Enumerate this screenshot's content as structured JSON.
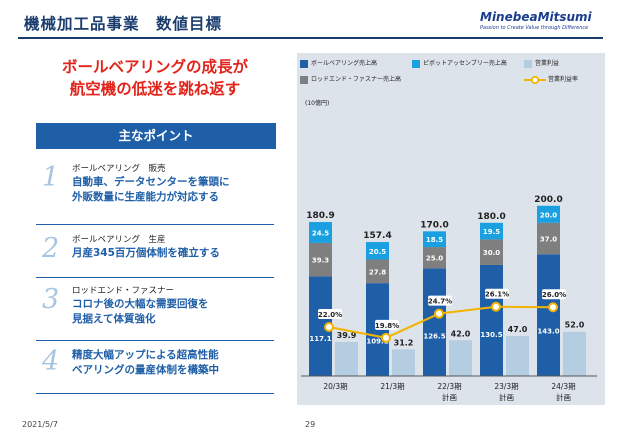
{
  "header": {
    "title": "機械加工品事業　数値目標",
    "logo_name": "MinebeaMitsumi",
    "logo_tagline": "Passion to Create Value through Difference"
  },
  "headline": {
    "line1": "ボールベアリングの成長が",
    "line2": "航空機の低迷を跳ね返す"
  },
  "points": {
    "heading": "主なポイント",
    "items": [
      {
        "num": "1",
        "category": "ボールベアリング　販売",
        "lines": [
          "自動車、データセンターを筆頭に",
          "外販数量に生産能力が対応する"
        ]
      },
      {
        "num": "2",
        "category": "ボールベアリング　生産",
        "lines": [
          "月産345百万個体制を確立する"
        ]
      },
      {
        "num": "3",
        "category": "ロッドエンド・ファスナー",
        "lines": [
          "コロナ後の大幅な需要回復を",
          "見据えて体質強化"
        ]
      },
      {
        "num": "4",
        "category": "",
        "lines": [
          "精度大幅アップによる超高性能",
          "ベアリングの量産体制を構築中"
        ]
      }
    ]
  },
  "footer": {
    "date": "2021/5/7",
    "page": "29"
  },
  "colors": {
    "brand_navy": "#1a3d6e",
    "accent_red": "#e2231a",
    "ball_bearing": "#1f5fa8",
    "pivot": "#1aa0e0",
    "rod_end": "#7f7f7f",
    "op_income": "#b4cde0",
    "margin_line": "#f2b400"
  },
  "chart_data": {
    "type": "bar",
    "unit": "(10億円)",
    "categories": [
      {
        "line1": "20/3期",
        "line2": ""
      },
      {
        "line1": "21/3期",
        "line2": ""
      },
      {
        "line1": "22/3期",
        "line2": "計画"
      },
      {
        "line1": "23/3期",
        "line2": "計画"
      },
      {
        "line1": "24/3期",
        "line2": "計画"
      }
    ],
    "series": [
      {
        "name": "ボールベアリング売上高",
        "values": [
          117.1,
          109.1,
          126.5,
          130.5,
          143.0
        ],
        "labels": [
          "117.1",
          "109.1",
          "126.5",
          "130.5",
          "143.0"
        ]
      },
      {
        "name": "ロッドエンド・ファスナー売上高",
        "values": [
          39.3,
          27.8,
          25.0,
          30.0,
          37.0
        ],
        "labels": [
          "39.3",
          "27.8",
          "25.0",
          "30.0",
          "37.0"
        ]
      },
      {
        "name": "ピボットアッセンブリー売上高",
        "values": [
          24.5,
          20.5,
          18.5,
          19.5,
          20.0
        ],
        "labels": [
          "24.5",
          "20.5",
          "18.5",
          "19.5",
          "20.0"
        ]
      },
      {
        "name": "営業利益",
        "values": [
          39.9,
          31.2,
          42.0,
          47.0,
          52.0
        ],
        "labels": [
          "39.9",
          "31.2",
          "42.0",
          "47.0",
          "52.0"
        ]
      }
    ],
    "line_series": {
      "name": "営業利益率",
      "values": [
        22.0,
        19.8,
        24.7,
        26.1,
        26.0
      ],
      "labels": [
        "22.0%",
        "19.8%",
        "24.7%",
        "26.1%",
        "26.0%"
      ]
    },
    "totals": {
      "values": [
        180.9,
        157.4,
        170.0,
        180.0,
        200.0
      ],
      "labels": [
        "180.9",
        "157.4",
        "170.0",
        "180.0",
        "200.0"
      ]
    },
    "ylim": [
      0,
      210
    ],
    "grid": false,
    "legend_position": "top"
  }
}
